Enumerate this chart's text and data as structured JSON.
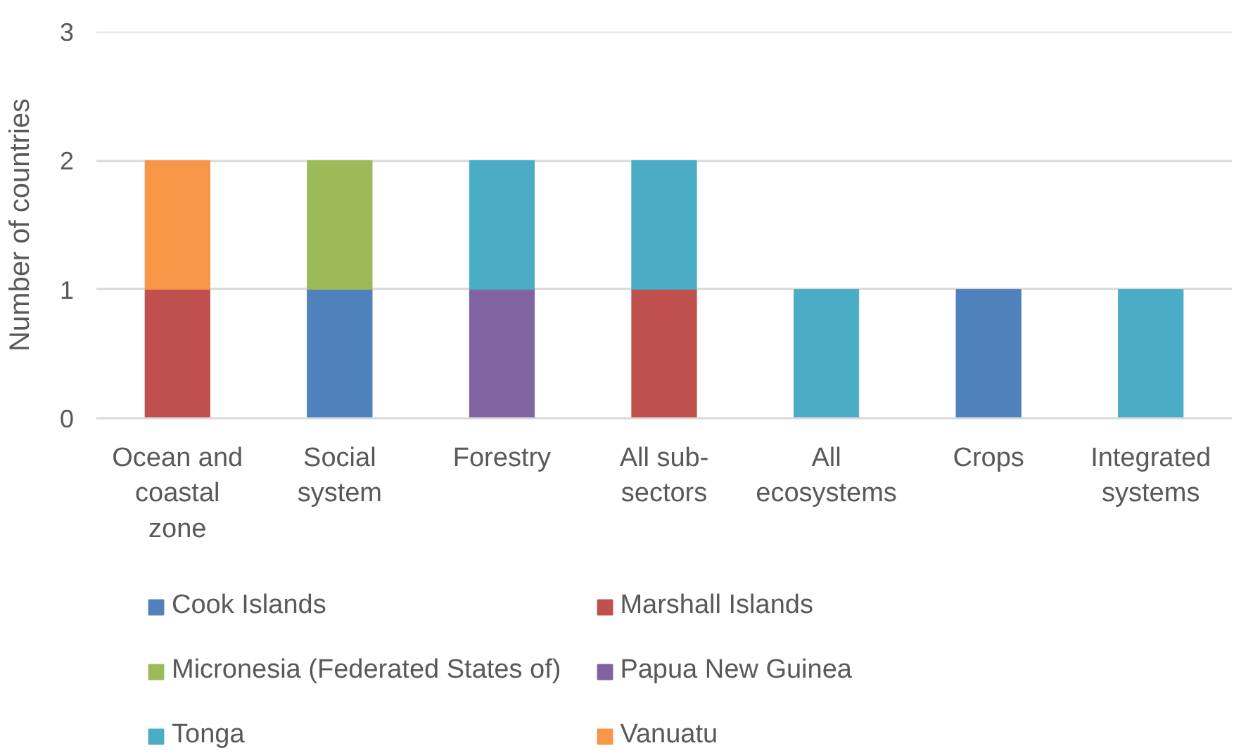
{
  "chart_data": {
    "type": "bar",
    "stacked": true,
    "ylabel": "Number of countries",
    "categories": [
      "Ocean and coastal zone",
      "Social system",
      "Forestry",
      "All sub-sectors",
      "All ecosystems",
      "Crops",
      "Integrated systems"
    ],
    "ylim": [
      0,
      3
    ],
    "yticks": [
      0,
      1,
      2,
      3
    ],
    "grid": "y",
    "legend": "bottom",
    "series": [
      {
        "name": "Cook Islands",
        "color": "#4f81bd",
        "values": [
          null,
          1,
          null,
          null,
          null,
          1,
          null
        ]
      },
      {
        "name": "Marshall Islands",
        "color": "#c0504d",
        "values": [
          1,
          null,
          null,
          1,
          null,
          null,
          null
        ]
      },
      {
        "name": "Micronesia (Federated States of)",
        "color": "#9bbb59",
        "values": [
          null,
          1,
          null,
          null,
          null,
          null,
          null
        ]
      },
      {
        "name": "Papua New Guinea",
        "color": "#8064a2",
        "values": [
          null,
          null,
          1,
          null,
          null,
          null,
          null
        ]
      },
      {
        "name": "Tonga",
        "color": "#4bacc6",
        "values": [
          null,
          null,
          1,
          1,
          1,
          null,
          1
        ]
      },
      {
        "name": "Vanuatu",
        "color": "#f79646",
        "values": [
          1,
          null,
          null,
          null,
          null,
          null,
          null
        ]
      }
    ]
  }
}
